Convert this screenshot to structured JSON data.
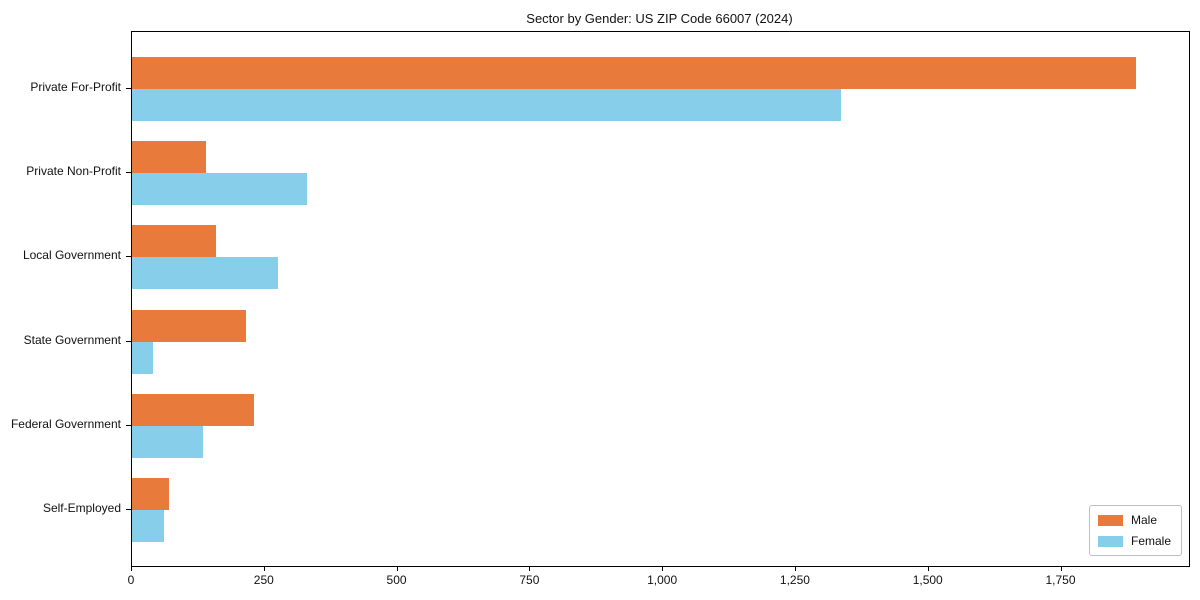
{
  "chart_data": {
    "type": "bar",
    "orientation": "horizontal",
    "title": "Sector by Gender: US ZIP Code 66007 (2024)",
    "categories": [
      "Private For-Profit",
      "Private Non-Profit",
      "Local Government",
      "State Government",
      "Federal Government",
      "Self-Employed"
    ],
    "series": [
      {
        "name": "Male",
        "color": "#e87a3c",
        "values": [
          1890,
          140,
          158,
          215,
          230,
          70
        ]
      },
      {
        "name": "Female",
        "color": "#87ceeb",
        "values": [
          1335,
          330,
          275,
          40,
          133,
          60
        ]
      }
    ],
    "xlabel": "",
    "ylabel": "",
    "xlim": [
      0,
      1990
    ],
    "xticks": {
      "values": [
        0,
        250,
        500,
        750,
        1000,
        1250,
        1500,
        1750
      ],
      "labels": [
        "0",
        "250",
        "500",
        "750",
        "1,000",
        "1,250",
        "1,500",
        "1,750"
      ]
    },
    "grid": false,
    "legend": {
      "position": "lower right",
      "entries": [
        "Male",
        "Female"
      ]
    },
    "colors": {
      "spine": "#000000",
      "background": "#ffffff",
      "legend_border": "#bfbfbf"
    }
  }
}
